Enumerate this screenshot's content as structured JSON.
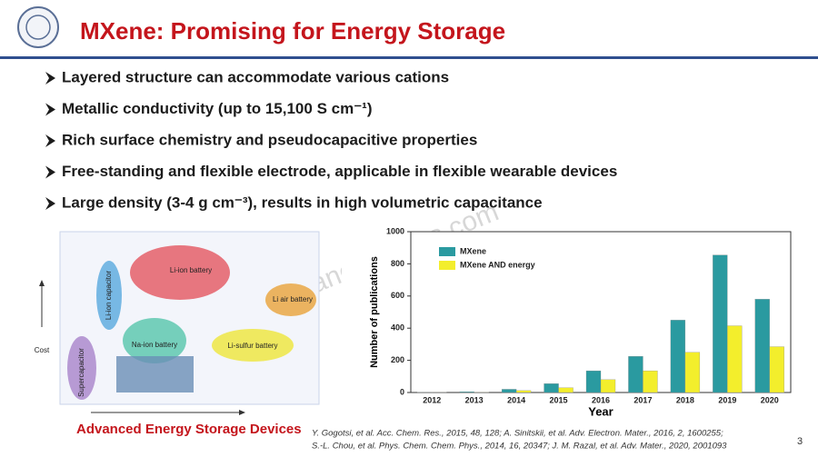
{
  "header": {
    "title": "MXene: Promising for Energy Storage"
  },
  "watermark": "http://www.nanomxenes.com",
  "bullets": [
    "Layered structure can accommodate various cations",
    "Metallic conductivity (up to 15,100 S cm⁻¹)",
    "Rich surface chemistry and pseudocapacitive properties",
    "Free-standing and  flexible electrode, applicable in flexible wearable devices",
    "Large density (3-4 g cm⁻³), results in high volumetric capacitance"
  ],
  "figure": {
    "caption": "Advanced Energy Storage Devices",
    "axis_label": "Cost",
    "devices": [
      "Li-ion battery",
      "Li-ion capacitor",
      "Li air battery",
      "Na-ion battery",
      "Li-sulfur battery",
      "Supercapacitor"
    ]
  },
  "chart_data": {
    "type": "bar",
    "categories": [
      "2012",
      "2013",
      "2014",
      "2015",
      "2016",
      "2017",
      "2018",
      "2019",
      "2020"
    ],
    "series": [
      {
        "name": "MXene",
        "color": "#2a9aa0",
        "values": [
          2,
          5,
          20,
          55,
          135,
          225,
          450,
          855,
          580
        ]
      },
      {
        "name": "MXene AND energy",
        "color": "#f3ee2c",
        "values": [
          1,
          2,
          12,
          30,
          80,
          135,
          250,
          415,
          285
        ]
      }
    ],
    "xlabel": "Year",
    "ylabel": "Number of publications",
    "ylim": [
      0,
      1000
    ],
    "yticks": [
      0,
      200,
      400,
      600,
      800,
      1000
    ],
    "legend": "top-left"
  },
  "references": [
    "Y. Gogotsi, et al. Acc. Chem. Res., 2015, 48, 128; A. Sinitskii, et al. Adv. Electron. Mater., 2016, 2, 1600255;",
    "S.-L. Chou, et al. Phys. Chem. Chem. Phys., 2014, 16, 20347; J. M. Razal, et al. Adv. Mater., 2020, 2001093"
  ],
  "page_number": "3"
}
